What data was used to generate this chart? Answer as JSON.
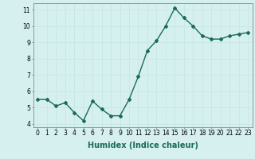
{
  "x": [
    0,
    1,
    2,
    3,
    4,
    5,
    6,
    7,
    8,
    9,
    10,
    11,
    12,
    13,
    14,
    15,
    16,
    17,
    18,
    19,
    20,
    21,
    22,
    23
  ],
  "y": [
    5.5,
    5.5,
    5.1,
    5.3,
    4.7,
    4.2,
    5.4,
    4.9,
    4.5,
    4.5,
    5.5,
    6.9,
    8.5,
    9.1,
    10.0,
    11.1,
    10.5,
    10.0,
    9.4,
    9.2,
    9.2,
    9.4,
    9.5,
    9.6
  ],
  "line_color": "#1a6b5a",
  "bg_color": "#d6f0f0",
  "grid_color": "#c8e8e8",
  "xlabel": "Humidex (Indice chaleur)",
  "xlim": [
    -0.5,
    23.5
  ],
  "ylim": [
    3.8,
    11.4
  ],
  "yticks": [
    4,
    5,
    6,
    7,
    8,
    9,
    10,
    11
  ],
  "xticks": [
    0,
    1,
    2,
    3,
    4,
    5,
    6,
    7,
    8,
    9,
    10,
    11,
    12,
    13,
    14,
    15,
    16,
    17,
    18,
    19,
    20,
    21,
    22,
    23
  ],
  "marker": "D",
  "marker_size": 2.0,
  "line_width": 1.0,
  "xlabel_fontsize": 7,
  "tick_fontsize": 5.5
}
